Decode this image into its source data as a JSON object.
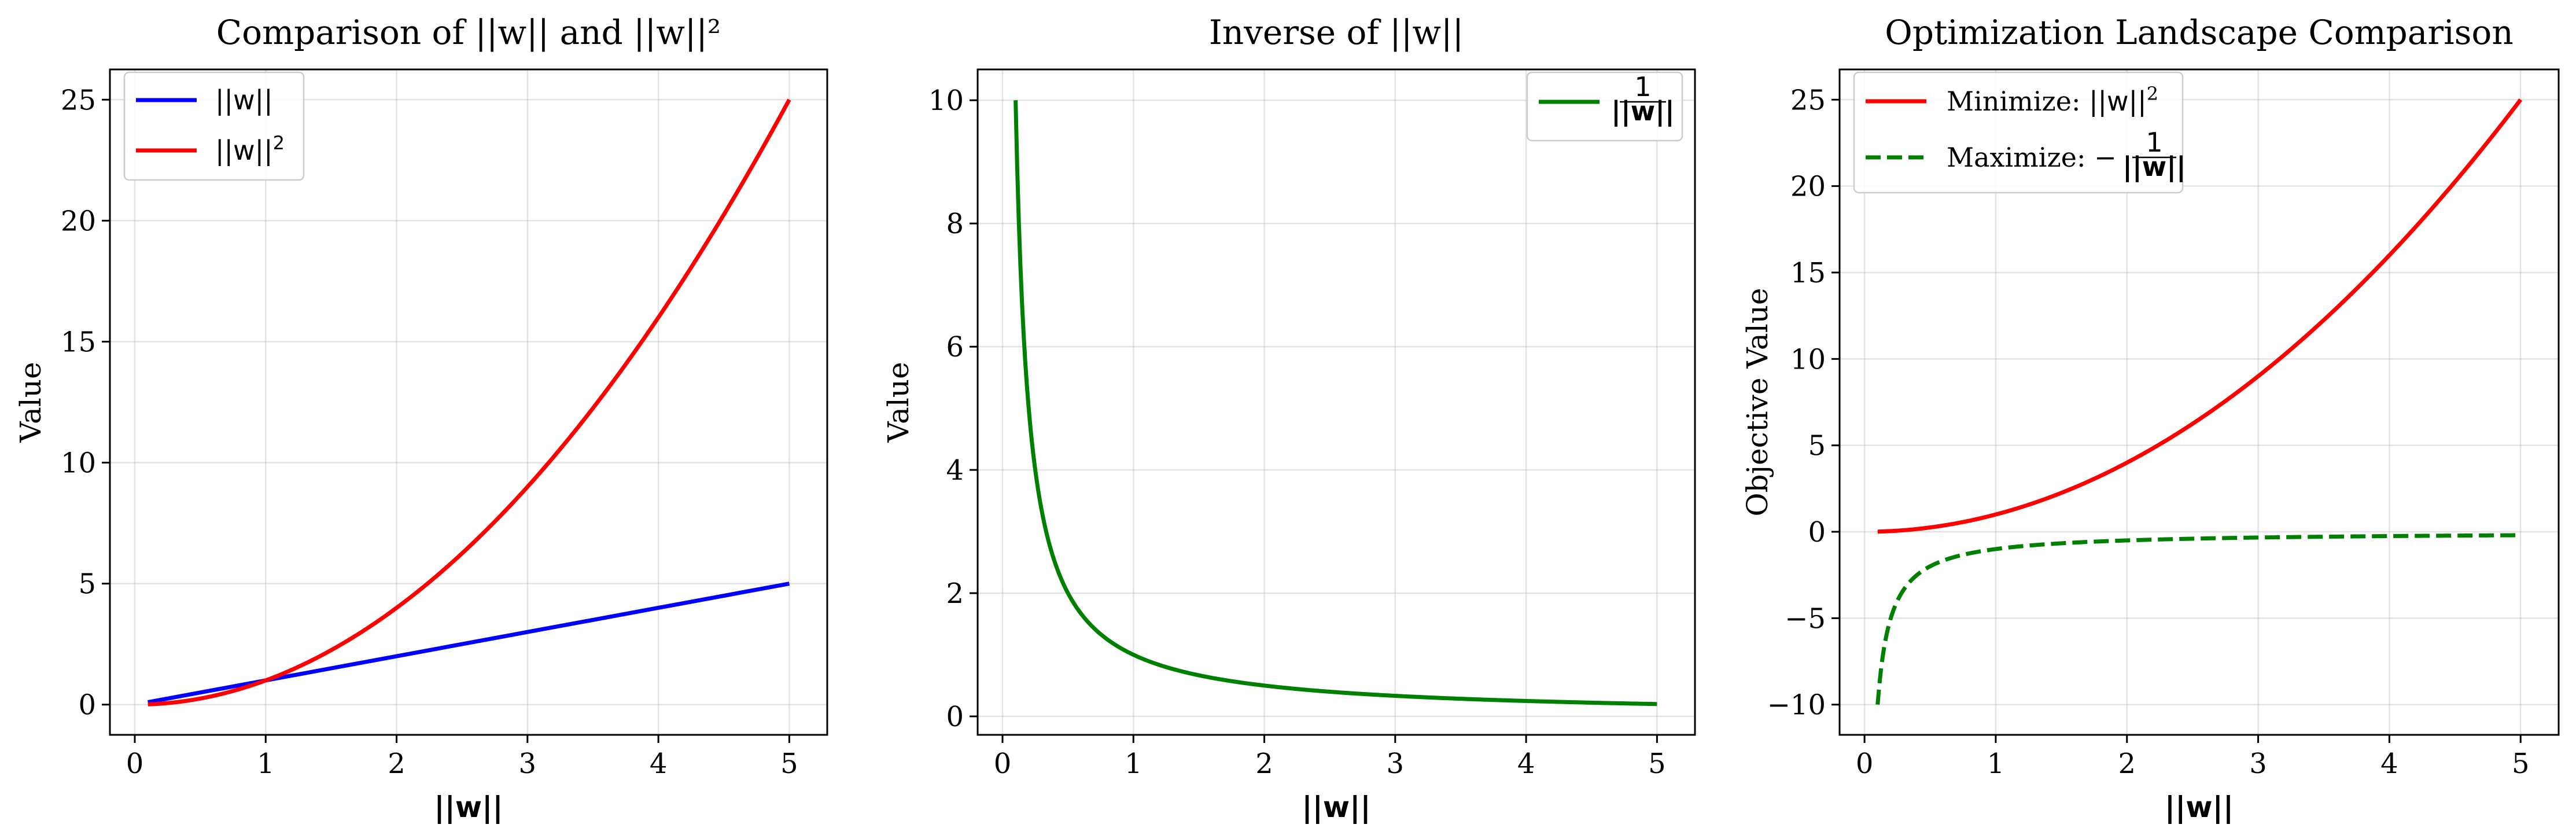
{
  "chart_data": [
    {
      "type": "line",
      "title": "Comparison of ||w|| and ||w||²",
      "xlabel": "||w||",
      "ylabel": "Value",
      "xlim": [
        -0.19,
        5.29
      ],
      "ylim": [
        -1.25,
        26.25
      ],
      "xticks": [
        0,
        1,
        2,
        3,
        4,
        5
      ],
      "yticks": [
        0,
        5,
        10,
        15,
        20,
        25
      ],
      "grid": true,
      "legend_position": "upper-left",
      "series": [
        {
          "name": "||w||",
          "label_sup": "",
          "color": "#0000ff",
          "dash": "solid",
          "x": [
            0.1,
            5
          ],
          "y": [
            0.1,
            5
          ]
        },
        {
          "name": "||w||",
          "label_sup": "2",
          "color": "#ff0000",
          "dash": "solid",
          "x": [
            0.1,
            0.5,
            1,
            1.5,
            2,
            2.5,
            3,
            3.5,
            4,
            4.5,
            5
          ],
          "y": [
            0.01,
            0.25,
            1,
            2.25,
            4,
            6.25,
            9,
            12.25,
            16,
            20.25,
            25
          ]
        }
      ]
    },
    {
      "type": "line",
      "title": "Inverse of ||w||",
      "xlabel": "||w||",
      "ylabel": "Value",
      "xlim": [
        -0.19,
        5.29
      ],
      "ylim": [
        -0.3,
        10.5
      ],
      "xticks": [
        0,
        1,
        2,
        3,
        4,
        5
      ],
      "yticks": [
        0,
        2,
        4,
        6,
        8,
        10
      ],
      "grid": true,
      "legend_position": "upper-right",
      "series": [
        {
          "name": "1/||w||",
          "numerator": "1",
          "denominator": "||w||",
          "color": "#008000",
          "dash": "solid",
          "x": [
            0.1,
            0.125,
            0.15,
            0.2,
            0.25,
            0.3,
            0.4,
            0.5,
            0.6,
            0.8,
            1,
            1.25,
            1.5,
            2,
            2.5,
            3,
            3.5,
            4,
            4.5,
            5
          ],
          "y": [
            10,
            8,
            6.67,
            5,
            4,
            3.33,
            2.5,
            2,
            1.67,
            1.25,
            1,
            0.8,
            0.67,
            0.5,
            0.4,
            0.33,
            0.29,
            0.25,
            0.22,
            0.2
          ]
        }
      ]
    },
    {
      "type": "line",
      "title": "Optimization Landscape Comparison",
      "xlabel": "||w||",
      "ylabel": "Objective Value",
      "xlim": [
        -0.19,
        5.29
      ],
      "ylim": [
        -11.75,
        26.75
      ],
      "xticks": [
        0,
        1,
        2,
        3,
        4,
        5
      ],
      "yticks": [
        -10,
        -5,
        0,
        5,
        10,
        15,
        20,
        25
      ],
      "grid": true,
      "legend_position": "upper-left",
      "series": [
        {
          "name": "Minimize: ||w||²",
          "prefix": "Minimize: ",
          "label_core": "||w||",
          "label_sup": "2",
          "color": "#ff0000",
          "dash": "solid",
          "x": [
            0.1,
            0.5,
            1,
            1.5,
            2,
            2.5,
            3,
            3.5,
            4,
            4.5,
            5
          ],
          "y": [
            0.01,
            0.25,
            1,
            2.25,
            4,
            6.25,
            9,
            12.25,
            16,
            20.25,
            25
          ]
        },
        {
          "name": "Maximize: −1/||w||",
          "prefix": "Maximize: −",
          "numerator": "1",
          "denominator": "||w||",
          "color": "#008000",
          "dash": "dashed",
          "x": [
            0.1,
            0.125,
            0.15,
            0.2,
            0.25,
            0.3,
            0.4,
            0.5,
            0.6,
            0.8,
            1,
            1.25,
            1.5,
            2,
            2.5,
            3,
            3.5,
            4,
            4.5,
            5
          ],
          "y": [
            -10,
            -8,
            -6.67,
            -5,
            -4,
            -3.33,
            -2.5,
            -2,
            -1.67,
            -1.25,
            -1,
            -0.8,
            -0.67,
            -0.5,
            -0.4,
            -0.33,
            -0.29,
            -0.25,
            -0.22,
            -0.2
          ]
        }
      ]
    }
  ]
}
